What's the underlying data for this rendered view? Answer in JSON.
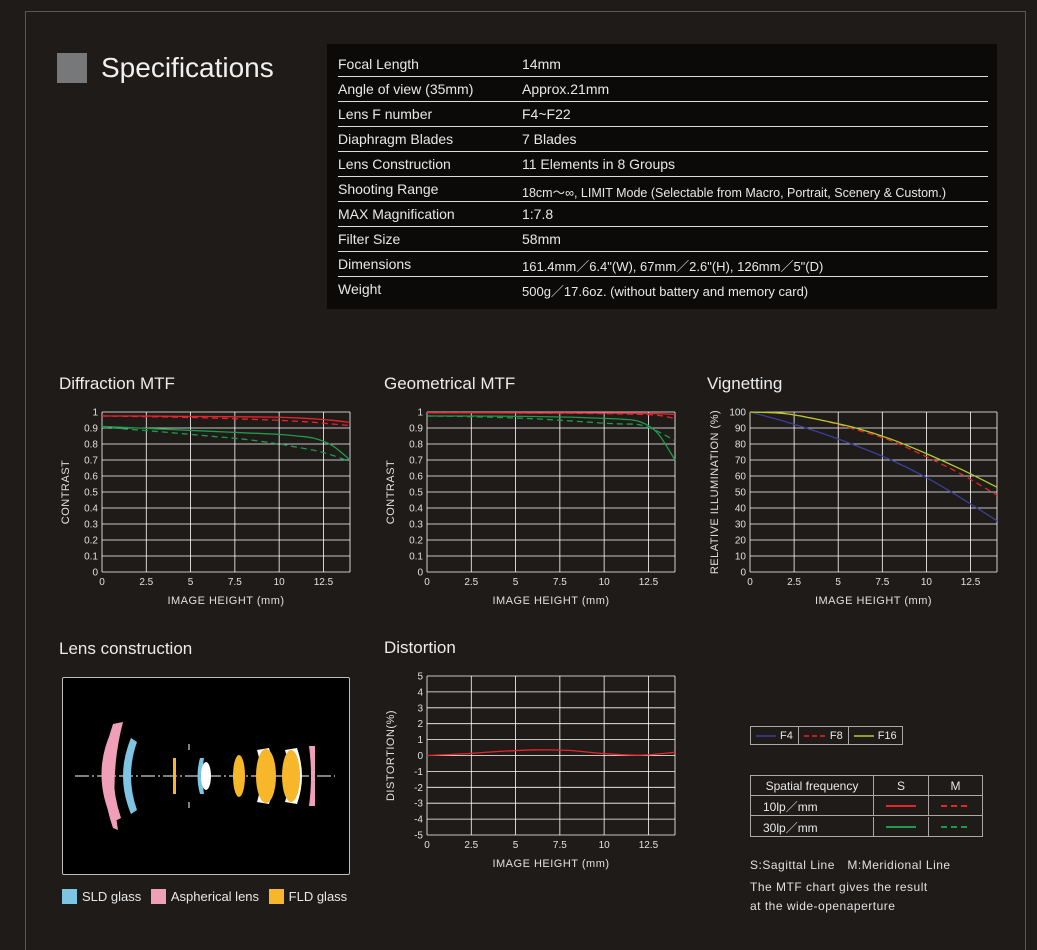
{
  "specifications": {
    "title": "Specifications",
    "rows": [
      {
        "key": "Focal Length",
        "value": "14mm"
      },
      {
        "key": "Angle of view (35mm)",
        "value": "Approx.21mm"
      },
      {
        "key": "Lens F number",
        "value": "F4~F22"
      },
      {
        "key": "Diaphragm Blades",
        "value": "7 Blades"
      },
      {
        "key": "Lens Construction",
        "value": "11 Elements in 8 Groups"
      },
      {
        "key": "Shooting Range",
        "value": "18cm〜∞, LIMIT Mode (Selectable from Macro, Portrait, Scenery & Custom.)"
      },
      {
        "key": "MAX Magnification",
        "value": "1:7.8"
      },
      {
        "key": "Filter Size",
        "value": "58mm"
      },
      {
        "key": "Dimensions",
        "value": "161.4mm／6.4\"(W), 67mm／2.6\"(H), 126mm／5\"(D)"
      },
      {
        "key": "Weight",
        "value": "500g／17.6oz. (without battery and memory card)"
      }
    ]
  },
  "sections": {
    "diffraction_mtf": "Diffraction MTF",
    "geometrical_mtf": "Geometrical MTF",
    "vignetting": "Vignetting",
    "lens_construction": "Lens construction",
    "distortion": "Distortion"
  },
  "chart_data": [
    {
      "type": "line",
      "title": "Diffraction MTF",
      "xlabel": "IMAGE HEIGHT (mm)",
      "ylabel": "CONTRAST",
      "xlim": [
        0,
        14
      ],
      "ylim": [
        0,
        1
      ],
      "xticks": [
        "0",
        "2.5",
        "5",
        "7.5",
        "10",
        "12.5"
      ],
      "yticks": [
        "0",
        "0.1",
        "0.2",
        "0.3",
        "0.4",
        "0.5",
        "0.6",
        "0.7",
        "0.8",
        "0.9",
        "1"
      ],
      "grid": true,
      "x": [
        0,
        2,
        4,
        6,
        8,
        10,
        11,
        12,
        13,
        14
      ],
      "series": [
        {
          "key": "10lp-S",
          "color": "#e8252b",
          "dashed": false,
          "values": [
            0.975,
            0.975,
            0.973,
            0.972,
            0.97,
            0.967,
            0.963,
            0.957,
            0.948,
            0.935
          ]
        },
        {
          "key": "10lp-M",
          "color": "#e8252b",
          "dashed": true,
          "values": [
            0.975,
            0.972,
            0.968,
            0.963,
            0.956,
            0.948,
            0.942,
            0.935,
            0.925,
            0.915
          ]
        },
        {
          "key": "30lp-S",
          "color": "#1f9a4b",
          "dashed": false,
          "values": [
            0.91,
            0.9,
            0.89,
            0.88,
            0.87,
            0.86,
            0.85,
            0.835,
            0.79,
            0.7
          ]
        },
        {
          "key": "30lp-M",
          "color": "#1f9a4b",
          "dashed": true,
          "values": [
            0.905,
            0.888,
            0.87,
            0.85,
            0.83,
            0.8,
            0.78,
            0.76,
            0.73,
            0.69
          ]
        }
      ]
    },
    {
      "type": "line",
      "title": "Geometrical MTF",
      "xlabel": "IMAGE HEIGHT (mm)",
      "ylabel": "CONTRAST",
      "xlim": [
        0,
        14
      ],
      "ylim": [
        0,
        1
      ],
      "xticks": [
        "0",
        "2.5",
        "5",
        "7.5",
        "10",
        "12.5"
      ],
      "yticks": [
        "0",
        "0.1",
        "0.2",
        "0.3",
        "0.4",
        "0.5",
        "0.6",
        "0.7",
        "0.8",
        "0.9",
        "1"
      ],
      "grid": true,
      "x": [
        0,
        2,
        4,
        6,
        8,
        10,
        11,
        12,
        13,
        14
      ],
      "series": [
        {
          "key": "10lp-S",
          "color": "#e8252b",
          "dashed": false,
          "values": [
            0.995,
            0.995,
            0.995,
            0.994,
            0.994,
            0.993,
            0.992,
            0.991,
            0.99,
            0.985
          ]
        },
        {
          "key": "10lp-M",
          "color": "#e8252b",
          "dashed": true,
          "values": [
            0.995,
            0.995,
            0.994,
            0.993,
            0.992,
            0.99,
            0.988,
            0.985,
            0.98,
            0.96
          ]
        },
        {
          "key": "30lp-S",
          "color": "#1f9a4b",
          "dashed": false,
          "values": [
            0.975,
            0.975,
            0.974,
            0.972,
            0.968,
            0.96,
            0.955,
            0.94,
            0.87,
            0.7
          ]
        },
        {
          "key": "30lp-M",
          "color": "#1f9a4b",
          "dashed": true,
          "values": [
            0.975,
            0.972,
            0.966,
            0.958,
            0.945,
            0.93,
            0.925,
            0.92,
            0.88,
            0.82
          ]
        }
      ]
    },
    {
      "type": "line",
      "title": "Vignetting",
      "xlabel": "IMAGE HEIGHT (mm)",
      "ylabel": "RELATIVE ILLUMINATION (%)",
      "xlim": [
        0,
        14
      ],
      "ylim": [
        0,
        100
      ],
      "xticks": [
        "0",
        "2.5",
        "5",
        "7.5",
        "10",
        "12.5"
      ],
      "yticks": [
        "0",
        "10",
        "20",
        "30",
        "40",
        "50",
        "60",
        "70",
        "80",
        "90",
        "100"
      ],
      "grid": true,
      "x": [
        0,
        2,
        4,
        6,
        8,
        10,
        12,
        14
      ],
      "series": [
        {
          "name": "F4",
          "color": "#3a3f9a",
          "dashed": false,
          "values": [
            100,
            94,
            87,
            79,
            70,
            59,
            46,
            32
          ]
        },
        {
          "name": "F8",
          "color": "#e8252b",
          "dashed": true,
          "values": [
            100,
            99,
            95,
            89,
            82,
            72,
            61,
            48
          ]
        },
        {
          "name": "F16",
          "color": "#b4cc2a",
          "dashed": false,
          "values": [
            100,
            99,
            95,
            90,
            83,
            74,
            64,
            53
          ]
        }
      ]
    },
    {
      "type": "line",
      "title": "Distortion",
      "xlabel": "IMAGE HEIGHT (mm)",
      "ylabel": "DISTORTION(%)",
      "xlim": [
        0,
        14
      ],
      "ylim": [
        -5,
        5
      ],
      "xticks": [
        "0",
        "2.5",
        "5",
        "7.5",
        "10",
        "12.5"
      ],
      "yticks": [
        "-5",
        "-4",
        "-3",
        "-2",
        "-1",
        "0",
        "1",
        "2",
        "3",
        "4",
        "5"
      ],
      "grid": true,
      "x": [
        0,
        2,
        4,
        6,
        8,
        10,
        12,
        14
      ],
      "series": [
        {
          "key": "distortion",
          "color": "#e8252b",
          "dashed": false,
          "values": [
            0,
            0.1,
            0.25,
            0.35,
            0.32,
            0.12,
            0.02,
            0.2
          ]
        }
      ]
    }
  ],
  "lens_legend": [
    {
      "label": "SLD glass",
      "color": "#7ec5e4"
    },
    {
      "label": "Aspherical lens",
      "color": "#f09fb9"
    },
    {
      "label": "FLD glass",
      "color": "#f8b62b"
    }
  ],
  "spatial_table": {
    "header": [
      "Spatial frequency",
      "S",
      "M"
    ],
    "rows": [
      {
        "label": "10lp／mm",
        "color": "#e8252b"
      },
      {
        "label": "30lp／mm",
        "color": "#1f9a4b"
      }
    ]
  },
  "notes": {
    "line_legend": "S:Sagittal Line　M:Meridional Line",
    "mtf_note_1": "The MTF chart gives the result",
    "mtf_note_2": "at the wide-openaperture"
  }
}
